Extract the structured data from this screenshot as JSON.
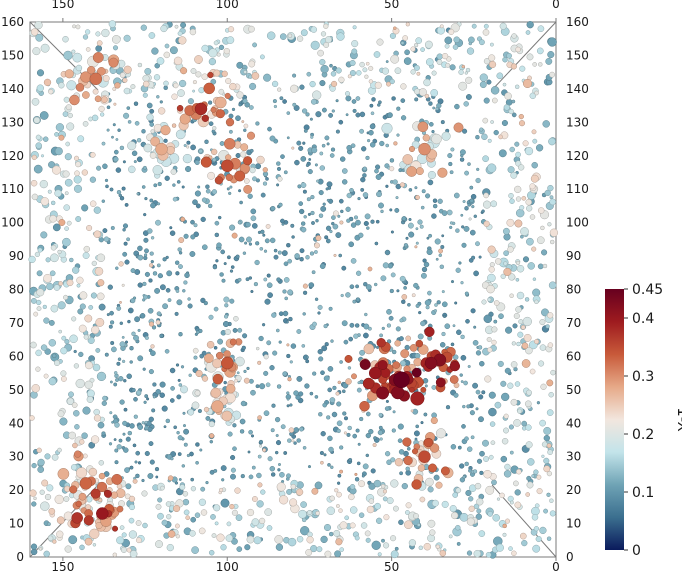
{
  "chart_data": {
    "type": "scatter",
    "subtype": "3d-particle-render",
    "title": "",
    "xlim": [
      160,
      0
    ],
    "ylim": [
      0,
      160
    ],
    "x_ticks": [
      "150",
      "100",
      "50",
      "0"
    ],
    "y_ticks": [
      "0",
      "10",
      "20",
      "30",
      "40",
      "50",
      "60",
      "70",
      "80",
      "90",
      "100",
      "110",
      "120",
      "130",
      "140",
      "150",
      "160"
    ],
    "colorbar": {
      "title": "1-X",
      "range": [
        0,
        0.45
      ],
      "ticks": [
        "0",
        "0.1",
        "0.2",
        "0.3",
        "0.4",
        "0.45"
      ],
      "colormap": [
        "#0a1a5c",
        "#3b6f8f",
        "#6fa3b5",
        "#c3e4ea",
        "#f2e6de",
        "#e6a988",
        "#c85a3a",
        "#9e1b1f",
        "#67001f"
      ]
    },
    "particle_count": 2600,
    "clusters": [
      {
        "x": 100,
        "y": 117,
        "value": 0.35
      },
      {
        "x": 108,
        "y": 134,
        "value": 0.38
      },
      {
        "x": 140,
        "y": 143,
        "value": 0.32
      },
      {
        "x": 120,
        "y": 122,
        "value": 0.28
      },
      {
        "x": 100,
        "y": 58,
        "value": 0.34
      },
      {
        "x": 103,
        "y": 45,
        "value": 0.28
      },
      {
        "x": 143,
        "y": 22,
        "value": 0.33
      },
      {
        "x": 138,
        "y": 13,
        "value": 0.4
      },
      {
        "x": 47,
        "y": 53,
        "value": 0.45
      },
      {
        "x": 55,
        "y": 55,
        "value": 0.4
      },
      {
        "x": 38,
        "y": 58,
        "value": 0.42
      },
      {
        "x": 40,
        "y": 30,
        "value": 0.35
      },
      {
        "x": 40,
        "y": 122,
        "value": 0.3
      }
    ]
  }
}
